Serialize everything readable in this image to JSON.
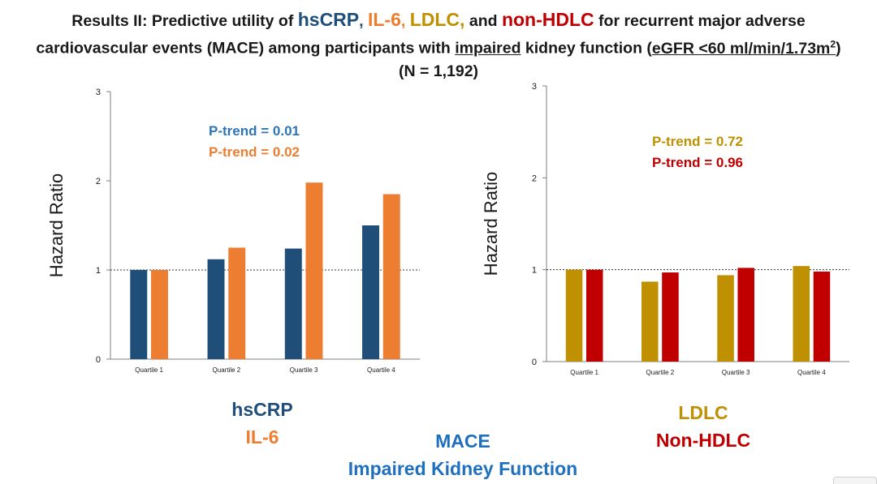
{
  "header": {
    "t1_prefix": "Results II: Predictive utility of ",
    "t1_hscrp": "hsCRP",
    "t1_c1": ", ",
    "t1_il6": "IL-6",
    "t1_c2": ", ",
    "t1_ldlc": "LDLC,",
    "t1_and": " and ",
    "t1_nonhdlc": "non-HDLC",
    "t1_suffix": " for recurrent major adverse",
    "t2_a": "cardiovascular events (MACE) among participants with ",
    "t2_impaired": "impaired",
    "t2_b": " kidney function (",
    "t2_egfr": "eGFR  <60 ml/min/1.73m",
    "t2_sup": "2",
    "t2_c": ")",
    "t3": "(N = 1,192)"
  },
  "colors": {
    "hscrp": "#1f4e79",
    "il6": "#ed7d31",
    "ldlc": "#bf9000",
    "nonhdlc": "#c00000",
    "ptrend_hscrp": "#2e75b6",
    "caption": "#1f6fbf"
  },
  "chart_data": [
    {
      "type": "bar",
      "ylabel": "Hazard Ratio",
      "ylim": [
        0,
        3
      ],
      "yticks": [
        "0",
        "1",
        "2",
        "3"
      ],
      "reference_line": 1,
      "categories": [
        "Quartile 1",
        "Quartile 2",
        "Quartile 3",
        "Quartile 4"
      ],
      "series": [
        {
          "name": "hsCRP",
          "color": "#1f4e79",
          "values": [
            1.0,
            1.12,
            1.24,
            1.5
          ]
        },
        {
          "name": "IL-6",
          "color": "#ed7d31",
          "values": [
            1.0,
            1.25,
            1.98,
            1.85
          ]
        }
      ],
      "annotations": [
        {
          "text": "P-trend = 0.01",
          "color": "#2e75b6"
        },
        {
          "text": "P-trend = 0.02",
          "color": "#ed7d31"
        }
      ]
    },
    {
      "type": "bar",
      "ylabel": "Hazard Ratio",
      "ylim": [
        0,
        3
      ],
      "yticks": [
        "0",
        "1",
        "2",
        "3"
      ],
      "reference_line": 1,
      "categories": [
        "Quartile 1",
        "Quartile 2",
        "Quartile 3",
        "Quartile 4"
      ],
      "series": [
        {
          "name": "LDLC",
          "color": "#bf9000",
          "values": [
            1.0,
            0.87,
            0.94,
            1.04
          ]
        },
        {
          "name": "Non-HDLC",
          "color": "#c00000",
          "values": [
            1.0,
            0.97,
            1.02,
            0.98
          ]
        }
      ],
      "annotations": [
        {
          "text": "P-trend = 0.72",
          "color": "#bf9000"
        },
        {
          "text": "P-trend = 0.96",
          "color": "#c00000"
        }
      ]
    }
  ],
  "legend_left": {
    "item1": "hsCRP",
    "item2": "IL-6"
  },
  "legend_right": {
    "item1": "LDLC",
    "item2": "Non-HDLC"
  },
  "caption": {
    "line1": "MACE",
    "line2": "Impaired Kidney Function"
  }
}
